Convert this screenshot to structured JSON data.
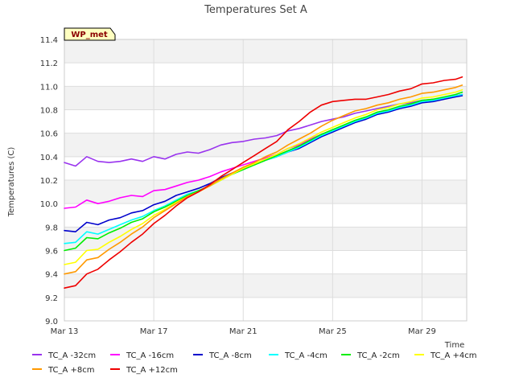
{
  "chart_data": {
    "type": "line",
    "title": "Temperatures Set A",
    "xlabel": "Time",
    "ylabel": "Temperatures (C)",
    "ylim": [
      9.0,
      11.4
    ],
    "xlim": [
      "Mar 13",
      "Mar 31"
    ],
    "yticks": [
      "9.0",
      "9.2",
      "9.4",
      "9.6",
      "9.8",
      "10.0",
      "10.2",
      "10.4",
      "10.6",
      "10.8",
      "11.0",
      "11.2",
      "11.4"
    ],
    "xticks": [
      {
        "label": "Mar 13",
        "day": 13
      },
      {
        "label": "Mar 17",
        "day": 17
      },
      {
        "label": "Mar 21",
        "day": 21
      },
      {
        "label": "Mar 25",
        "day": 25
      },
      {
        "label": "Mar 29",
        "day": 29
      }
    ],
    "grid": true,
    "banding": "alternating gray bands",
    "annotation": "WP_met",
    "legend_position": "bottom",
    "x_days": [
      13.0,
      13.5,
      14.0,
      14.5,
      15.0,
      15.5,
      16.0,
      16.5,
      17.0,
      17.5,
      18.0,
      18.5,
      19.0,
      19.5,
      20.0,
      20.5,
      21.0,
      21.5,
      22.0,
      22.5,
      23.0,
      23.5,
      24.0,
      24.5,
      25.0,
      25.5,
      26.0,
      26.5,
      27.0,
      27.5,
      28.0,
      28.5,
      29.0,
      29.5,
      30.0,
      30.5,
      30.8
    ],
    "series": [
      {
        "name": "TC_A -32cm",
        "color": "#9933ee",
        "values": [
          10.35,
          10.32,
          10.4,
          10.36,
          10.35,
          10.36,
          10.38,
          10.36,
          10.4,
          10.38,
          10.42,
          10.44,
          10.43,
          10.46,
          10.5,
          10.52,
          10.53,
          10.55,
          10.56,
          10.58,
          10.62,
          10.64,
          10.67,
          10.7,
          10.72,
          10.74,
          10.77,
          10.79,
          10.81,
          10.83,
          10.85,
          10.86,
          10.88,
          10.89,
          10.9,
          10.92,
          10.93
        ]
      },
      {
        "name": "TC_A -16cm",
        "color": "#ff00ff",
        "values": [
          9.96,
          9.97,
          10.03,
          10.0,
          10.02,
          10.05,
          10.07,
          10.06,
          10.11,
          10.12,
          10.15,
          10.18,
          10.2,
          10.23,
          10.27,
          10.3,
          10.33,
          10.36,
          10.39,
          10.42,
          10.47,
          10.5,
          10.55,
          10.59,
          10.63,
          10.66,
          10.7,
          10.73,
          10.77,
          10.79,
          10.82,
          10.84,
          10.87,
          10.88,
          10.9,
          10.92,
          10.93
        ]
      },
      {
        "name": "TC_A -8cm",
        "color": "#0000cc",
        "values": [
          9.77,
          9.76,
          9.84,
          9.82,
          9.86,
          9.88,
          9.92,
          9.94,
          9.99,
          10.02,
          10.07,
          10.1,
          10.13,
          10.17,
          10.22,
          10.26,
          10.3,
          10.33,
          10.37,
          10.4,
          10.44,
          10.47,
          10.52,
          10.57,
          10.61,
          10.65,
          10.69,
          10.72,
          10.76,
          10.78,
          10.81,
          10.83,
          10.86,
          10.87,
          10.89,
          10.91,
          10.92
        ]
      },
      {
        "name": "TC_A -4cm",
        "color": "#00ffff",
        "values": [
          9.66,
          9.67,
          9.76,
          9.74,
          9.78,
          9.82,
          9.86,
          9.89,
          9.94,
          9.98,
          10.03,
          10.08,
          10.11,
          10.15,
          10.2,
          10.25,
          10.29,
          10.33,
          10.37,
          10.4,
          10.44,
          10.48,
          10.53,
          10.58,
          10.62,
          10.66,
          10.7,
          10.73,
          10.77,
          10.79,
          10.82,
          10.84,
          10.87,
          10.88,
          10.9,
          10.92,
          10.93
        ]
      },
      {
        "name": "TC_A -2cm",
        "color": "#00ee00",
        "values": [
          9.6,
          9.62,
          9.71,
          9.7,
          9.75,
          9.79,
          9.84,
          9.87,
          9.93,
          9.97,
          10.02,
          10.07,
          10.11,
          10.15,
          10.2,
          10.25,
          10.29,
          10.33,
          10.37,
          10.41,
          10.45,
          10.49,
          10.54,
          10.59,
          10.63,
          10.67,
          10.71,
          10.74,
          10.78,
          10.8,
          10.83,
          10.85,
          10.88,
          10.89,
          10.91,
          10.93,
          10.95
        ]
      },
      {
        "name": "TC_A +4cm",
        "color": "#ffff00",
        "values": [
          9.48,
          9.5,
          9.6,
          9.61,
          9.67,
          9.72,
          9.78,
          9.83,
          9.9,
          9.95,
          10.01,
          10.06,
          10.1,
          10.15,
          10.2,
          10.25,
          10.3,
          10.34,
          10.38,
          10.42,
          10.47,
          10.51,
          10.56,
          10.61,
          10.65,
          10.69,
          10.73,
          10.76,
          10.8,
          10.82,
          10.85,
          10.87,
          10.9,
          10.91,
          10.93,
          10.95,
          10.97
        ]
      },
      {
        "name": "TC_A +8cm",
        "color": "#ff9900",
        "values": [
          9.4,
          9.42,
          9.52,
          9.54,
          9.61,
          9.67,
          9.74,
          9.8,
          9.88,
          9.94,
          10.0,
          10.06,
          10.1,
          10.15,
          10.21,
          10.26,
          10.31,
          10.35,
          10.4,
          10.44,
          10.5,
          10.55,
          10.6,
          10.66,
          10.71,
          10.75,
          10.79,
          10.81,
          10.84,
          10.86,
          10.89,
          10.91,
          10.94,
          10.95,
          10.97,
          10.99,
          11.01
        ]
      },
      {
        "name": "TC_A +12cm",
        "color": "#ee0000",
        "values": [
          9.28,
          9.3,
          9.4,
          9.44,
          9.52,
          9.59,
          9.67,
          9.74,
          9.83,
          9.9,
          9.98,
          10.05,
          10.1,
          10.16,
          10.23,
          10.29,
          10.35,
          10.41,
          10.47,
          10.53,
          10.63,
          10.7,
          10.78,
          10.84,
          10.87,
          10.88,
          10.89,
          10.89,
          10.91,
          10.93,
          10.96,
          10.98,
          11.02,
          11.03,
          11.05,
          11.06,
          11.08
        ]
      }
    ]
  }
}
